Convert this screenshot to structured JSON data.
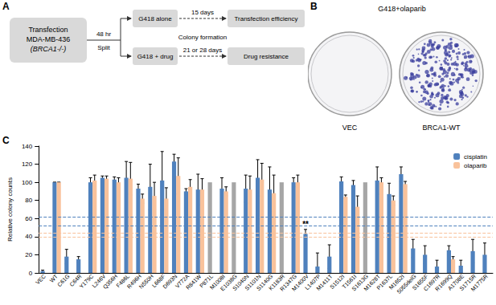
{
  "panel_a": {
    "label": "A",
    "start": [
      "Transfection",
      "MDA-MB-436",
      "(BRCA1-/-)"
    ],
    "split_top": "48 hr",
    "split_bottom": "Split",
    "arm_top": "G418 alone",
    "arm_bottom": "G418 + drug",
    "time_top": "15 days",
    "middle": "Colony formation",
    "time_bottom": "21 or 28 days",
    "result_top": "Transfection efficiency",
    "result_bottom": "Drug resistance"
  },
  "panel_b": {
    "label": "B",
    "title": "G418+olaparib",
    "plates": [
      "VEC",
      "BRCA1-WT"
    ]
  },
  "chart_data": {
    "type": "bar",
    "label": "C",
    "categories": [
      "VEC",
      "WT",
      "C61G",
      "C64R",
      "Y179C",
      "L246V",
      "Q356H",
      "F486L",
      "R496H",
      "N550H",
      "L668F",
      "D693N",
      "V772A",
      "R841W",
      "P871L",
      "M1008I",
      "E1038G",
      "S1040N",
      "S1101N",
      "S1140G",
      "K1183R",
      "R1347G",
      "M1400V",
      "L1407P",
      "M1411T",
      "S1512I",
      "T1561I",
      "S1613G",
      "M1628T",
      "P1637L",
      "M1652I",
      "5055delG",
      "S1655F",
      "C1697R",
      "R1699Q",
      "A1708E",
      "S1715R",
      "M1775R"
    ],
    "ylabel": "Relative colony counts",
    "ylim": [
      0,
      140
    ],
    "yticks": [
      0,
      20,
      40,
      60,
      80,
      100,
      120,
      140
    ],
    "legend": "top-right",
    "grid": false,
    "series": [
      {
        "name": "cisplatin",
        "color": "#4f81bd",
        "colors": [
          "#4f81bd",
          "#4f81bd",
          "#4f81bd",
          "#4f81bd",
          "#4f81bd",
          "#4f81bd",
          "#4f81bd",
          "#4f81bd",
          "#4f81bd",
          "#4f81bd",
          "#4f81bd",
          "#4f81bd",
          "#4f81bd",
          "#4f81bd",
          "#a6a6a6",
          "#4f81bd",
          "#a6a6a6",
          "#4f81bd",
          "#4f81bd",
          "#4f81bd",
          "#a6a6a6",
          "#4f81bd",
          "#4f81bd",
          "#4f81bd",
          "#4f81bd",
          "#4f81bd",
          "#4f81bd",
          "#a6a6a6",
          "#4f81bd",
          "#4f81bd",
          "#4f81bd",
          "#4f81bd",
          "#4f81bd",
          "#4f81bd",
          "#4f81bd",
          "#4f81bd",
          "#4f81bd",
          "#4f81bd"
        ],
        "values": [
          2,
          100,
          18,
          15,
          100,
          105,
          103,
          105,
          93,
          95,
          102,
          123,
          90,
          92,
          100,
          93,
          100,
          93,
          105,
          92,
          100,
          100,
          43,
          7,
          18,
          101,
          97,
          100,
          102,
          87,
          109,
          27,
          20,
          7,
          25,
          8,
          24,
          20
        ],
        "errors": [
          1,
          0,
          8,
          3,
          5,
          2,
          3,
          18,
          5,
          25,
          32,
          8,
          3,
          17,
          null,
          12,
          null,
          15,
          20,
          25,
          null,
          5,
          5,
          15,
          13,
          5,
          5,
          null,
          15,
          12,
          8,
          10,
          10,
          7,
          5,
          6,
          13,
          13
        ],
        "thresholds": [
          62,
          52
        ]
      },
      {
        "name": "olaparib",
        "color": "#f9c29b",
        "values": [
          null,
          100,
          null,
          null,
          102,
          104,
          100,
          104,
          82,
          85,
          82,
          107,
          95,
          92,
          null,
          90,
          null,
          92,
          103,
          88,
          null,
          100,
          null,
          null,
          null,
          84,
          73,
          null,
          100,
          80,
          98,
          null,
          null,
          null,
          15,
          null,
          null,
          null
        ],
        "errors": [
          null,
          0,
          null,
          null,
          6,
          3,
          5,
          18,
          5,
          15,
          12,
          20,
          8,
          12,
          null,
          5,
          null,
          15,
          18,
          20,
          null,
          8,
          null,
          null,
          null,
          2,
          12,
          null,
          5,
          5,
          3,
          null,
          null,
          null,
          3,
          null,
          null,
          null
        ],
        "thresholds": [
          44,
          40
        ]
      }
    ],
    "annotations": [
      {
        "category": "M1400V",
        "text": "**"
      }
    ]
  }
}
